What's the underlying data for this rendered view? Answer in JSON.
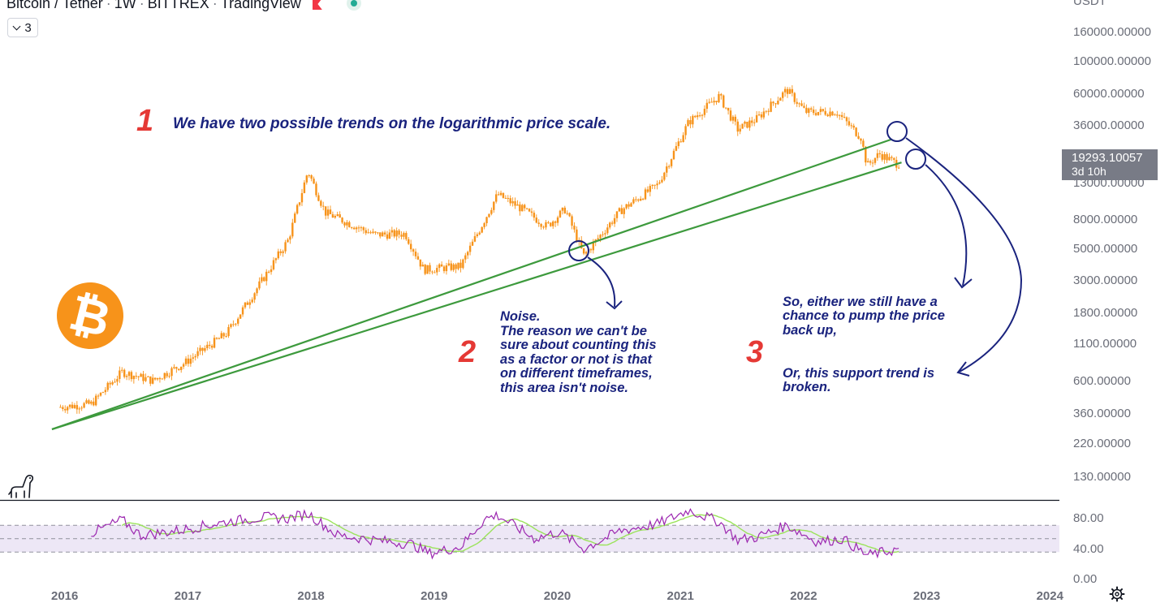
{
  "header": {
    "symbol": "Bitcoin / Tether",
    "interval": "1W",
    "exchange": "BITTREX",
    "source": "TradingView",
    "indicator_count": "3"
  },
  "price_axis": {
    "currency": "USDT",
    "labels": [
      "160000.00000",
      "100000.00000",
      "60000.00000",
      "36000.00000",
      "13000.00000",
      "8000.00000",
      "5000.00000",
      "3000.00000",
      "1800.00000",
      "1100.00000",
      "600.00000",
      "360.00000",
      "220.00000",
      "130.00000"
    ]
  },
  "current_price": {
    "value": "19293.10057",
    "countdown": "3d 10h"
  },
  "rsi_axis": {
    "labels": [
      "80.00",
      "40.00",
      "0.00"
    ]
  },
  "time_axis": {
    "labels": [
      "2016",
      "2017",
      "2018",
      "2019",
      "2020",
      "2021",
      "2022",
      "2023",
      "2024"
    ]
  },
  "annotations": {
    "n1": "1",
    "n2": "2",
    "n3": "3",
    "note1": "We have two possible trends on the logarithmic price scale.",
    "note2": [
      "Noise.",
      "The reason we can't be",
      "sure about counting this",
      "as a factor or not is that",
      "on different timeframes,",
      "this area isn't noise."
    ],
    "note3a": [
      "So, either we still have a",
      "chance to pump the price",
      "back up,"
    ],
    "note3b": [
      "Or, this support trend is",
      "broken."
    ]
  },
  "colors": {
    "candle": "#f7931a",
    "trendline": "#3d9a3d",
    "rsi_line": "#9c27b0",
    "rsi_ma": "#9be35b",
    "rsi_band": "#ede7f6",
    "annotation": "#1a237e",
    "number": "#e53935"
  },
  "icons": {
    "logo": "bitcoin-logo-icon",
    "brand": "tradingview-dino-icon",
    "settings": "gear-icon"
  },
  "chart_data": {
    "type": "candlestick",
    "scale": "log",
    "x_unit": "year",
    "price_keypoints": [
      [
        2015.95,
        400
      ],
      [
        2016.2,
        420
      ],
      [
        2016.45,
        700
      ],
      [
        2016.7,
        610
      ],
      [
        2016.95,
        800
      ],
      [
        2017.3,
        1300
      ],
      [
        2017.55,
        2700
      ],
      [
        2017.8,
        5800
      ],
      [
        2017.96,
        17500
      ],
      [
        2018.1,
        9000
      ],
      [
        2018.3,
        7500
      ],
      [
        2018.5,
        6300
      ],
      [
        2018.75,
        6400
      ],
      [
        2018.9,
        3600
      ],
      [
        2019.2,
        3800
      ],
      [
        2019.5,
        12000
      ],
      [
        2019.7,
        9500
      ],
      [
        2019.9,
        7200
      ],
      [
        2020.05,
        9500
      ],
      [
        2020.2,
        4500
      ],
      [
        2020.5,
        9300
      ],
      [
        2020.8,
        14000
      ],
      [
        2021.05,
        38000
      ],
      [
        2021.3,
        58000
      ],
      [
        2021.45,
        34000
      ],
      [
        2021.6,
        40000
      ],
      [
        2021.85,
        64000
      ],
      [
        2022.0,
        45000
      ],
      [
        2022.25,
        45000
      ],
      [
        2022.45,
        30000
      ],
      [
        2022.5,
        19000
      ],
      [
        2022.6,
        23000
      ],
      [
        2022.75,
        19500
      ]
    ],
    "trendlines": [
      {
        "from": [
          2016.0,
          280
        ],
        "to": [
          2022.7,
          29000
        ]
      },
      {
        "from": [
          2016.0,
          280
        ],
        "to": [
          2022.78,
          20000
        ]
      }
    ],
    "rsi": {
      "upper_band": 70,
      "lower_band": 30,
      "mid": 50,
      "keypoints": [
        [
          2016.2,
          58
        ],
        [
          2016.45,
          78
        ],
        [
          2016.6,
          55
        ],
        [
          2016.9,
          62
        ],
        [
          2017.3,
          75
        ],
        [
          2017.6,
          82
        ],
        [
          2017.8,
          80
        ],
        [
          2017.96,
          88
        ],
        [
          2018.2,
          55
        ],
        [
          2018.5,
          48
        ],
        [
          2018.8,
          42
        ],
        [
          2018.95,
          28
        ],
        [
          2019.2,
          38
        ],
        [
          2019.4,
          80
        ],
        [
          2019.5,
          85
        ],
        [
          2019.8,
          50
        ],
        [
          2020.0,
          60
        ],
        [
          2020.2,
          35
        ],
        [
          2020.5,
          62
        ],
        [
          2020.8,
          72
        ],
        [
          2021.0,
          88
        ],
        [
          2021.05,
          93
        ],
        [
          2021.3,
          75
        ],
        [
          2021.45,
          48
        ],
        [
          2021.6,
          52
        ],
        [
          2021.85,
          70
        ],
        [
          2022.1,
          45
        ],
        [
          2022.3,
          50
        ],
        [
          2022.5,
          25
        ],
        [
          2022.75,
          34
        ]
      ]
    }
  }
}
